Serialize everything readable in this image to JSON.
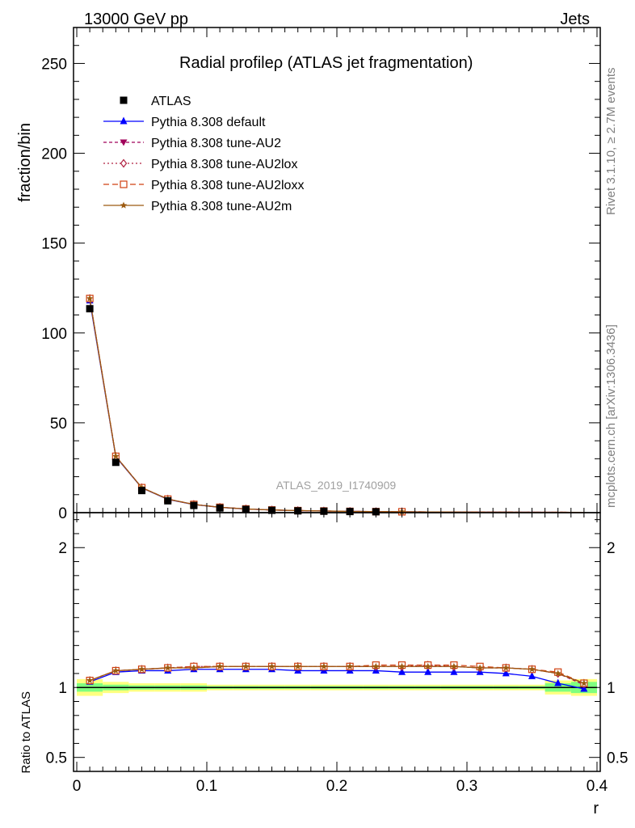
{
  "header": {
    "left": "13000 GeV pp",
    "right": "Jets"
  },
  "side": {
    "rivet": "Rivet 3.1.10, ≥ 2.7M events",
    "mcplots": "mcplots.cern.ch [arXiv:1306.3436]"
  },
  "chart_data": {
    "type": "line",
    "title": "Radial profileρ (ATLAS jet fragmentation)",
    "analysis_label": "ATLAS_2019_I1740909",
    "xlabel": "r",
    "ylabel": "fraction/bin",
    "ratio_ylabel": "Ratio to ATLAS",
    "xlim": [
      -0.0025,
      0.4025
    ],
    "ylim": [
      0,
      270
    ],
    "ratio_ylim": [
      0.4,
      2.25
    ],
    "x_ticks": [
      "0",
      "0.1",
      "0.2",
      "0.3",
      "0.4"
    ],
    "y_ticks": [
      "0",
      "50",
      "100",
      "150",
      "200",
      "250"
    ],
    "ratio_ticks": [
      "0.5",
      "1",
      "2"
    ],
    "x": [
      0.01,
      0.03,
      0.05,
      0.07,
      0.09,
      0.11,
      0.13,
      0.15,
      0.17,
      0.19,
      0.21,
      0.23,
      0.25,
      0.27,
      0.29,
      0.31,
      0.33,
      0.35,
      0.37,
      0.39
    ],
    "data": {
      "name": "ATLAS",
      "values": [
        113.5,
        28.0,
        12.3,
        6.6,
        4.0,
        2.6,
        1.8,
        1.3,
        1.0,
        0.8,
        0.62,
        0.5,
        0.42,
        0.35,
        0.3,
        0.26,
        0.22,
        0.2,
        0.18,
        0.16
      ]
    },
    "series": [
      {
        "name": "Pythia 8.308 default",
        "color": "#0000ff",
        "dash": "solid",
        "marker": "triangle-up",
        "ratio": [
          1.04,
          1.11,
          1.12,
          1.12,
          1.13,
          1.13,
          1.13,
          1.13,
          1.12,
          1.12,
          1.12,
          1.12,
          1.11,
          1.11,
          1.11,
          1.11,
          1.1,
          1.08,
          1.03,
          0.99
        ]
      },
      {
        "name": "Pythia 8.308 tune-AU2",
        "color": "#a0005a",
        "dash": "4,3",
        "marker": "triangle-down",
        "ratio": [
          1.05,
          1.12,
          1.13,
          1.14,
          1.14,
          1.15,
          1.15,
          1.15,
          1.15,
          1.15,
          1.15,
          1.15,
          1.15,
          1.15,
          1.15,
          1.14,
          1.14,
          1.13,
          1.1,
          1.02
        ]
      },
      {
        "name": "Pythia 8.308 tune-AU2lox",
        "color": "#b02040",
        "dash": "2,3",
        "marker": "diamond-open",
        "ratio": [
          1.05,
          1.12,
          1.13,
          1.14,
          1.15,
          1.15,
          1.15,
          1.15,
          1.15,
          1.15,
          1.15,
          1.15,
          1.15,
          1.16,
          1.15,
          1.14,
          1.14,
          1.13,
          1.1,
          1.03
        ]
      },
      {
        "name": "Pythia 8.308 tune-AU2loxx",
        "color": "#d04010",
        "dash": "7,4",
        "marker": "square-open",
        "ratio": [
          1.05,
          1.12,
          1.13,
          1.14,
          1.15,
          1.15,
          1.15,
          1.15,
          1.15,
          1.15,
          1.15,
          1.16,
          1.16,
          1.16,
          1.16,
          1.15,
          1.14,
          1.13,
          1.11,
          1.03
        ]
      },
      {
        "name": "Pythia 8.308 tune-AU2m",
        "color": "#9c5a10",
        "dash": "solid",
        "marker": "star",
        "ratio": [
          1.05,
          1.12,
          1.13,
          1.14,
          1.14,
          1.15,
          1.15,
          1.15,
          1.15,
          1.15,
          1.15,
          1.15,
          1.15,
          1.15,
          1.15,
          1.14,
          1.14,
          1.13,
          1.1,
          1.03
        ]
      }
    ],
    "uncertainty_band": {
      "yellow": [
        0.06,
        0.04,
        0.03,
        0.03,
        0.03,
        0.02,
        0.02,
        0.02,
        0.02,
        0.02,
        0.02,
        0.02,
        0.02,
        0.02,
        0.02,
        0.02,
        0.02,
        0.02,
        0.05,
        0.06
      ],
      "green": [
        0.03,
        0.02,
        0.015,
        0.015,
        0.015,
        0.01,
        0.01,
        0.01,
        0.01,
        0.01,
        0.01,
        0.01,
        0.01,
        0.01,
        0.01,
        0.01,
        0.01,
        0.01,
        0.03,
        0.04
      ],
      "yellow_color": "#ffff80",
      "green_color": "#7fff7f"
    },
    "legend_position": "top-left"
  }
}
